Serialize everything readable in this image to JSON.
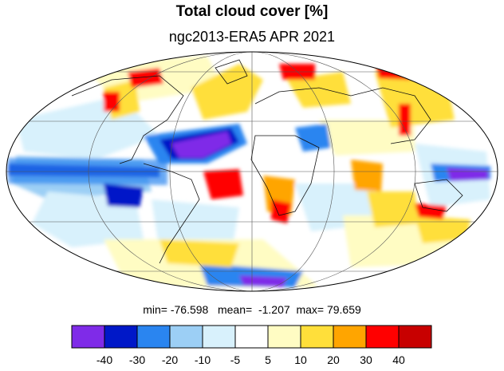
{
  "title": "Total cloud cover [%]",
  "subtitle": "ngc2013-ERA5 APR 2021",
  "stats": {
    "min_label": "min=",
    "min": "-76.598",
    "mean_label": "mean=",
    "mean": "-1.207",
    "max_label": "max=",
    "max": "79.659"
  },
  "colorbar": {
    "colors": [
      "#7f2be8",
      "#0018c8",
      "#2a85f0",
      "#9ccff5",
      "#d8f1fc",
      "#ffffff",
      "#fffcc3",
      "#ffdf3a",
      "#ffa500",
      "#ff0000",
      "#c80000"
    ],
    "ticks": [
      "-40",
      "-30",
      "-20",
      "-10",
      "-5",
      "5",
      "10",
      "20",
      "30",
      "40"
    ]
  },
  "map": {
    "projection": "Mollweide",
    "ocean_color": "#ffffff"
  }
}
